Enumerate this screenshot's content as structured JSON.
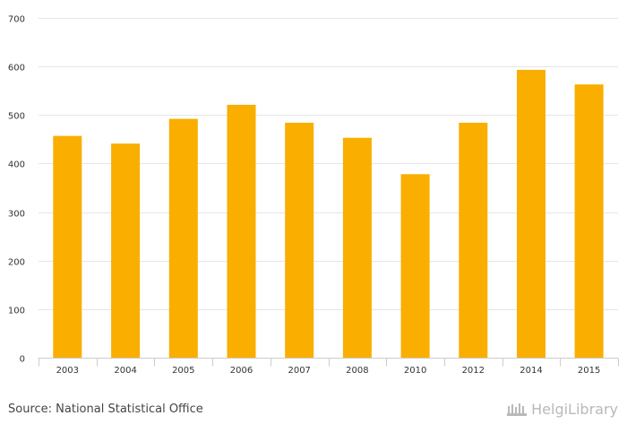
{
  "chart_data": {
    "type": "bar",
    "categories": [
      "2003",
      "2004",
      "2005",
      "2006",
      "2007",
      "2008",
      "2010",
      "2012",
      "2014",
      "2015"
    ],
    "values": [
      457,
      441,
      492,
      521,
      484,
      453,
      378,
      484,
      593,
      563
    ],
    "ylim": [
      0,
      700
    ],
    "yticks": [
      "0",
      "100",
      "200",
      "300",
      "400",
      "500",
      "600",
      "700"
    ],
    "grid": true,
    "bar_color": "#f9ae00"
  },
  "footer": {
    "source": "Source: National Statistical Office",
    "logo_text": "HelgiLibrary"
  }
}
